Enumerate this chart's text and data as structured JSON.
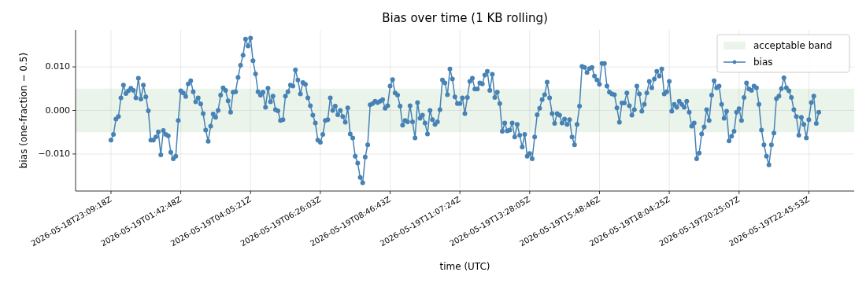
{
  "chart_data": {
    "type": "line",
    "title": "Bias over time (1 KB rolling)",
    "xlabel": "time (UTC)",
    "ylabel": "bias (one-fraction − 0.5)",
    "categories": [
      "2026-05-18T23:09:18Z",
      null,
      null,
      null,
      null,
      null,
      null,
      null,
      null,
      null,
      null,
      null,
      null,
      null,
      null,
      null,
      null,
      null,
      null,
      null,
      null,
      null,
      null,
      null,
      null,
      null,
      null,
      null,
      "2026-05-19T01:42:48Z",
      null,
      null,
      null,
      null,
      null,
      null,
      null,
      null,
      null,
      null,
      null,
      null,
      null,
      null,
      null,
      null,
      null,
      null,
      null,
      null,
      null,
      null,
      null,
      null,
      null,
      null,
      null,
      "2026-05-19T04:05:21Z",
      null,
      null,
      null,
      null,
      null,
      null,
      null,
      null,
      null,
      null,
      null,
      null,
      null,
      null,
      null,
      null,
      null,
      null,
      null,
      null,
      null,
      null,
      null,
      null,
      null,
      null,
      null,
      "2026-05-19T06:26:03Z",
      null,
      null,
      null,
      null,
      null,
      null,
      null,
      null,
      null,
      null,
      null,
      null,
      null,
      null,
      null,
      null,
      null,
      null,
      null,
      null,
      null,
      null,
      null,
      null,
      null,
      null,
      null,
      "2026-05-19T08:46:43Z",
      null,
      null,
      null,
      null,
      null,
      null,
      null,
      null,
      null,
      null,
      null,
      null,
      null,
      null,
      null,
      null,
      null,
      null,
      null,
      null,
      null,
      null,
      null,
      null,
      null,
      null,
      null,
      "2026-05-19T11:07:24Z",
      null,
      null,
      null,
      null,
      null,
      null,
      null,
      null,
      null,
      null,
      null,
      null,
      null,
      null,
      null,
      null,
      null,
      null,
      null,
      null,
      null,
      null,
      null,
      null,
      null,
      null,
      null,
      "2026-05-19T13:28:05Z",
      null,
      null,
      null,
      null,
      null,
      null,
      null,
      null,
      null,
      null,
      null,
      null,
      null,
      null,
      null,
      null,
      null,
      null,
      null,
      null,
      null,
      null,
      null,
      null,
      null,
      null,
      null,
      "2026-05-19T15:48:46Z",
      null,
      null,
      null,
      null,
      null,
      null,
      null,
      null,
      null,
      null,
      null,
      null,
      null,
      null,
      null,
      null,
      null,
      null,
      null,
      null,
      null,
      null,
      null,
      null,
      null,
      null,
      null,
      "2026-05-19T18:04:25Z",
      null,
      null,
      null,
      null,
      null,
      null,
      null,
      null,
      null,
      null,
      null,
      null,
      null,
      null,
      null,
      null,
      null,
      null,
      null,
      null,
      null,
      null,
      null,
      null,
      null,
      null,
      null,
      "2026-05-19T20:25:07Z",
      null,
      null,
      null,
      null,
      null,
      null,
      null,
      null,
      null,
      null,
      null,
      null,
      null,
      null,
      null,
      null,
      null,
      null,
      null,
      null,
      null,
      null,
      null,
      null,
      null,
      null,
      null,
      "2026-05-19T22:45:53Z",
      null,
      null,
      null,
      null
    ],
    "series": [
      {
        "name": "bias",
        "color": "#4682b4",
        "values": [
          -0.0068,
          -0.0055,
          -0.002,
          -0.0014,
          0.0029,
          0.0058,
          0.0039,
          0.0045,
          0.0051,
          0.0046,
          0.0029,
          0.0074,
          0.0026,
          0.0058,
          0.0031,
          -0.0001,
          -0.0068,
          -0.0068,
          -0.0061,
          -0.0049,
          -0.0102,
          -0.0046,
          -0.0055,
          -0.0058,
          -0.0096,
          -0.0111,
          -0.0105,
          -0.0023,
          0.0045,
          0.004,
          0.0032,
          0.0061,
          0.0068,
          0.0043,
          0.002,
          0.0029,
          0.0015,
          -0.0007,
          -0.0045,
          -0.0071,
          -0.0036,
          -0.0008,
          -0.0016,
          0.0,
          0.0035,
          0.0052,
          0.0046,
          0.0022,
          -0.0004,
          0.0042,
          0.0043,
          0.0076,
          0.0104,
          0.0127,
          0.0164,
          0.0148,
          0.0166,
          0.0114,
          0.0084,
          0.0043,
          0.0035,
          0.0042,
          0.0007,
          0.0051,
          0.002,
          0.0033,
          0.0002,
          -0.0001,
          -0.0023,
          -0.0021,
          0.0033,
          0.0043,
          0.0058,
          0.0056,
          0.0093,
          0.007,
          0.0038,
          0.0064,
          0.006,
          0.0029,
          0.0011,
          -0.0011,
          -0.0029,
          -0.0068,
          -0.0073,
          -0.0055,
          -0.0023,
          -0.0021,
          0.0029,
          0.0,
          0.001,
          -0.001,
          0.0,
          -0.0014,
          -0.0027,
          0.0006,
          -0.0054,
          -0.0063,
          -0.0105,
          -0.0121,
          -0.0154,
          -0.0166,
          -0.0107,
          -0.0079,
          0.0013,
          0.0016,
          0.0021,
          0.0018,
          0.0021,
          0.0025,
          0.0005,
          0.0011,
          0.0056,
          0.0071,
          0.004,
          0.0035,
          0.001,
          -0.0034,
          -0.0023,
          -0.0026,
          0.0011,
          -0.0026,
          -0.0063,
          0.0018,
          -0.0018,
          -0.0011,
          -0.0029,
          -0.0054,
          0.0,
          -0.0021,
          -0.0032,
          -0.0026,
          0.0002,
          0.007,
          0.0063,
          0.0036,
          0.0095,
          0.0072,
          0.0031,
          0.0016,
          0.0016,
          0.0029,
          -0.0007,
          0.003,
          0.0067,
          0.0074,
          0.0049,
          0.0049,
          0.0063,
          0.0061,
          0.0081,
          0.009,
          0.0046,
          0.0083,
          0.003,
          0.0042,
          0.0016,
          -0.0048,
          -0.0029,
          -0.0047,
          -0.0045,
          -0.0029,
          -0.0061,
          -0.0032,
          -0.0057,
          -0.0084,
          -0.0055,
          -0.0105,
          -0.0099,
          -0.0111,
          -0.0061,
          -0.001,
          0.0005,
          0.0025,
          0.0036,
          0.0065,
          0.0029,
          -0.0007,
          -0.003,
          -0.0007,
          -0.0011,
          -0.0029,
          -0.002,
          -0.0032,
          -0.0021,
          -0.0061,
          -0.0079,
          -0.0032,
          0.001,
          0.0101,
          0.0099,
          0.0087,
          0.0096,
          0.0099,
          0.0079,
          0.007,
          0.006,
          0.0108,
          0.0108,
          0.0056,
          0.0042,
          0.0038,
          0.0036,
          0.0006,
          -0.0027,
          0.0017,
          0.0017,
          0.004,
          0.0011,
          -0.0011,
          0.0002,
          0.0056,
          0.0038,
          -0.0002,
          0.0014,
          0.004,
          0.0067,
          0.0052,
          0.0072,
          0.009,
          0.0079,
          0.0095,
          0.0038,
          0.0043,
          0.0067,
          -0.0002,
          0.0014,
          0.0007,
          0.0021,
          0.0014,
          0.0007,
          0.0021,
          -0.0004,
          -0.0036,
          -0.0029,
          -0.0111,
          -0.0098,
          -0.0054,
          -0.0038,
          0.0002,
          -0.0023,
          0.0035,
          0.0068,
          0.0052,
          0.0056,
          0.0014,
          -0.0018,
          -0.0002,
          -0.007,
          -0.0059,
          -0.0048,
          -0.0004,
          0.0004,
          -0.0023,
          0.003,
          0.0063,
          0.0049,
          0.0046,
          0.0056,
          0.0052,
          0.0014,
          -0.0045,
          -0.0079,
          -0.0105,
          -0.0125,
          -0.0079,
          -0.0052,
          0.0027,
          0.0033,
          0.005,
          0.0075,
          0.0052,
          0.0045,
          0.003,
          0.0002,
          -0.0014,
          -0.0057,
          -0.0016,
          -0.0032,
          -0.0063,
          -0.0021,
          0.0018,
          0.0033,
          -0.003,
          -0.0004
        ]
      }
    ],
    "bands": [
      {
        "axis": "y",
        "from": -0.005,
        "to": 0.005,
        "label": "acceptable band",
        "color": "#eaf4ea"
      }
    ],
    "ylim": [
      -0.0185,
      0.0185
    ],
    "yticks": [
      {
        "value": -0.01,
        "label": "−0.010"
      },
      {
        "value": 0,
        "label": "0.000"
      },
      {
        "value": 0.01,
        "label": "0.010"
      }
    ],
    "grid": true,
    "legend": "top right",
    "marker": "circle",
    "line_style": "solid"
  }
}
